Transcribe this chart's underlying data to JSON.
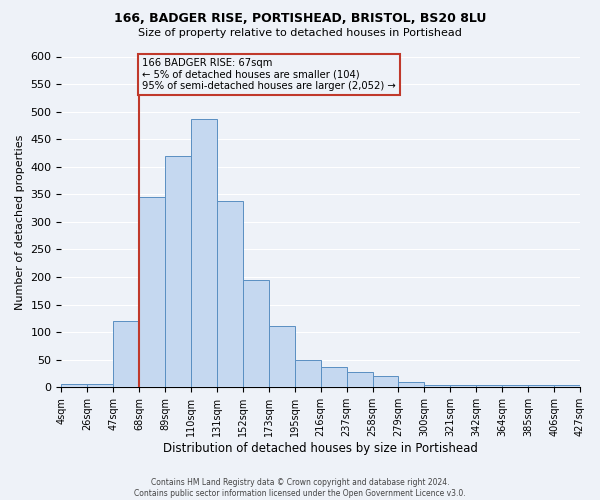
{
  "title": "166, BADGER RISE, PORTISHEAD, BRISTOL, BS20 8LU",
  "subtitle": "Size of property relative to detached houses in Portishead",
  "xlabel": "Distribution of detached houses by size in Portishead",
  "ylabel": "Number of detached properties",
  "bin_labels": [
    "4sqm",
    "26sqm",
    "47sqm",
    "68sqm",
    "89sqm",
    "110sqm",
    "131sqm",
    "152sqm",
    "173sqm",
    "195sqm",
    "216sqm",
    "237sqm",
    "258sqm",
    "279sqm",
    "300sqm",
    "321sqm",
    "342sqm",
    "364sqm",
    "385sqm",
    "406sqm",
    "427sqm"
  ],
  "bar_values": [
    6,
    6,
    120,
    345,
    420,
    487,
    338,
    195,
    112,
    50,
    36,
    27,
    20,
    9,
    4,
    4,
    4,
    4,
    4,
    4
  ],
  "bar_color": "#c5d8f0",
  "bar_edge_color": "#5a8fc2",
  "ylim": [
    0,
    600
  ],
  "yticks": [
    0,
    50,
    100,
    150,
    200,
    250,
    300,
    350,
    400,
    450,
    500,
    550,
    600
  ],
  "property_label": "166 BADGER RISE: 67sqm",
  "annotation_line1": "← 5% of detached houses are smaller (104)",
  "annotation_line2": "95% of semi-detached houses are larger (2,052) →",
  "vline_x_bin_index": 3,
  "vline_color": "#c0392b",
  "annotation_box_color": "#c0392b",
  "background_color": "#eef2f8",
  "grid_color": "#ffffff",
  "footer_line1": "Contains HM Land Registry data © Crown copyright and database right 2024.",
  "footer_line2": "Contains public sector information licensed under the Open Government Licence v3.0."
}
